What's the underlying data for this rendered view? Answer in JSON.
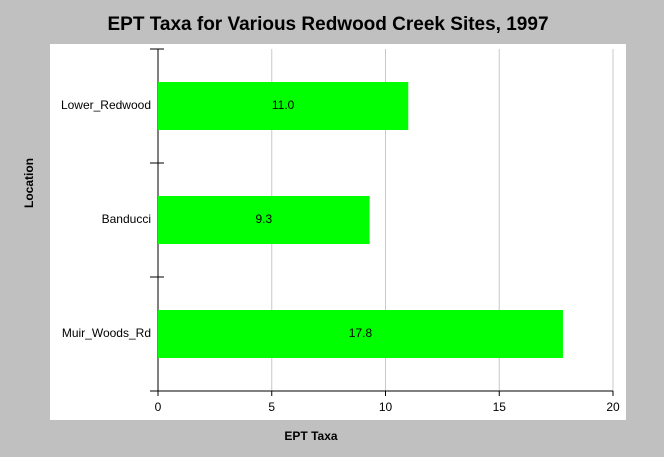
{
  "chart_data": {
    "type": "bar",
    "orientation": "horizontal",
    "title": "EPT Taxa for Various Redwood Creek Sites, 1997",
    "x_label": "EPT Taxa",
    "y_label": "Location",
    "categories": [
      "Lower_Redwood",
      "Banducci",
      "Muir_Woods_Rd"
    ],
    "values": [
      11.0,
      9.3,
      17.8
    ],
    "value_labels": [
      "11.0",
      "9.3",
      "17.8"
    ],
    "color": "#00ff00",
    "xlim": [
      0,
      20
    ],
    "xticks": [
      0,
      5,
      10,
      15,
      20
    ],
    "grid": true
  }
}
